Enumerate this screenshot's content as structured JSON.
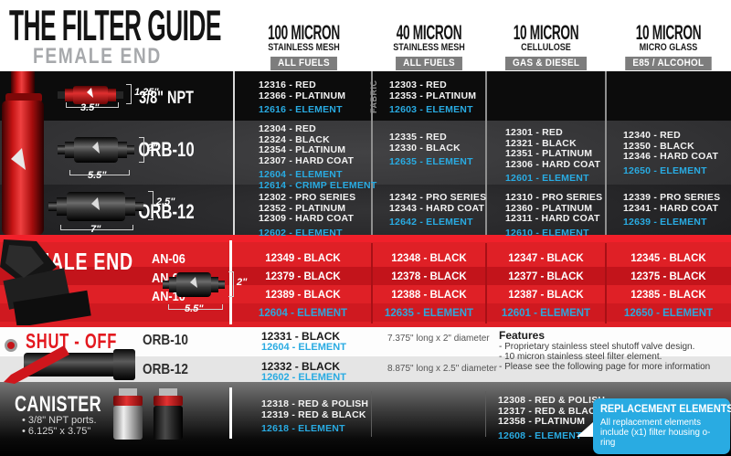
{
  "header": {
    "title": "THE FILTER GUIDE",
    "subtitle": "FEMALE END",
    "columns": [
      {
        "micron": "100 MICRON",
        "media": "STAINLESS MESH",
        "badge": "ALL FUELS"
      },
      {
        "micron": "40 MICRON",
        "media": "STAINLESS MESH",
        "badge": "ALL FUELS"
      },
      {
        "micron": "10 MICRON",
        "media": "CELLULOSE",
        "badge": "GAS & DIESEL"
      },
      {
        "micron": "10 MICRON",
        "media": "MICRO GLASS",
        "badge": "E85 / ALCOHOL"
      }
    ]
  },
  "female": {
    "rows": [
      {
        "label": "3/8\" NPT",
        "dims": {
          "height": "1.25\"",
          "length": "3.5\""
        },
        "cells": [
          {
            "note": "",
            "parts": [
              "12316 - RED",
              "12366 - PLATINUM"
            ],
            "elements": [
              "12616 - ELEMENT"
            ]
          },
          {
            "note": "FABRIC",
            "parts": [
              "12303 - RED",
              "12353 - PLATINUM"
            ],
            "elements": [
              "12603 - ELEMENT"
            ]
          },
          {
            "note": "",
            "parts": [],
            "elements": []
          },
          {
            "note": "",
            "parts": [],
            "elements": []
          }
        ]
      },
      {
        "label": "ORB-10",
        "dims": {
          "height": "2\"",
          "length": "5.5\""
        },
        "cells": [
          {
            "note": "",
            "parts": [
              "12304 - RED",
              "12324 - BLACK",
              "12354 - PLATINUM",
              "12307 - HARD COAT"
            ],
            "elements": [
              "12604 - ELEMENT",
              "12614 - CRIMP ELEMENT"
            ]
          },
          {
            "note": "",
            "parts": [
              "12335 - RED",
              "12330 - BLACK"
            ],
            "elements": [
              "12635 - ELEMENT"
            ]
          },
          {
            "note": "",
            "parts": [
              "12301 - RED",
              "12321 - BLACK",
              "12351 - PLATINUM",
              "12306 - HARD COAT"
            ],
            "elements": [
              "12601 - ELEMENT"
            ]
          },
          {
            "note": "",
            "parts": [
              "12340 - RED",
              "12350 - BLACK",
              "12346 - HARD COAT"
            ],
            "elements": [
              "12650 - ELEMENT"
            ]
          }
        ]
      },
      {
        "label": "ORB-12",
        "dims": {
          "height": "2.5\"",
          "length": "7\""
        },
        "cells": [
          {
            "note": "",
            "parts": [
              "12302 - PRO SERIES",
              "12352 - PLATINUM",
              "12309 - HARD COAT"
            ],
            "elements": [
              "12602 - ELEMENT"
            ]
          },
          {
            "note": "",
            "parts": [
              "12342 - PRO SERIES",
              "12343 - HARD COAT"
            ],
            "elements": [
              "12642 - ELEMENT"
            ]
          },
          {
            "note": "",
            "parts": [
              "12310 - PRO SERIES",
              "12360 - PLATINUM",
              "12311 - HARD COAT"
            ],
            "elements": [
              "12610 - ELEMENT"
            ]
          },
          {
            "note": "",
            "parts": [
              "12339 - PRO SERIES",
              "12341 - HARD COAT"
            ],
            "elements": [
              "12639 - ELEMENT"
            ]
          }
        ]
      }
    ]
  },
  "male": {
    "section_label": "MALE END",
    "dims": {
      "height": "2\"",
      "length": "5.5\""
    },
    "rows": [
      {
        "label": "AN-06",
        "cells": [
          "12349 - BLACK",
          "12348 - BLACK",
          "12347 - BLACK",
          "12345 - BLACK"
        ]
      },
      {
        "label": "AN-08",
        "cells": [
          "12379 - BLACK",
          "12378 - BLACK",
          "12377 - BLACK",
          "12375 - BLACK"
        ]
      },
      {
        "label": "AN-10",
        "cells": [
          "12389 - BLACK",
          "12388 - BLACK",
          "12387 - BLACK",
          "12385 - BLACK"
        ]
      }
    ],
    "element_row": [
      "12604 - ELEMENT",
      "12635 - ELEMENT",
      "12601 - ELEMENT",
      "12650 - ELEMENT"
    ]
  },
  "shutoff": {
    "section_label": "SHUT - OFF",
    "rows": [
      {
        "label": "ORB-10",
        "part": "12331 - BLACK",
        "element": "12604 - ELEMENT",
        "dims": "7.375\" long x 2\" diameter"
      },
      {
        "label": "ORB-12",
        "part": "12332 - BLACK",
        "element": "12602 - ELEMENT",
        "dims": "8.875\" long x 2.5\" diameter"
      }
    ],
    "features": {
      "title": "Features",
      "items": [
        "- Proprietary stainless steel shutoff valve design.",
        "- 10 micron stainless steel filter element.",
        "- Please see the following page for more information"
      ]
    }
  },
  "canister": {
    "section_label": "CANISTER",
    "bullets": [
      "• 3/8\" NPT ports.",
      "• 6.125\" x 3.75\""
    ],
    "cells": [
      {
        "note": "",
        "parts": [
          "12318 - RED & POLISH",
          "12319 - RED & BLACK"
        ],
        "elements": [
          "12618 - ELEMENT"
        ]
      },
      {
        "note": "",
        "parts": [],
        "elements": []
      },
      {
        "note": "",
        "parts": [
          "12308 - RED & POLISH",
          "12317 - RED & BLACK",
          "12358 - PLATINUM"
        ],
        "elements": [
          "12608 - ELEMENT"
        ]
      },
      {
        "note": "",
        "parts": [],
        "elements": []
      }
    ],
    "replacement_box": {
      "title": "REPLACEMENT ELEMENTS",
      "body": "All replacement elements include (x1) filter housing o-ring"
    }
  },
  "colors": {
    "element_blue": "#29abe2",
    "band_red": "#df2026",
    "band_red_dark": "#c3141b",
    "badge_gray": "#7d7d7d"
  }
}
